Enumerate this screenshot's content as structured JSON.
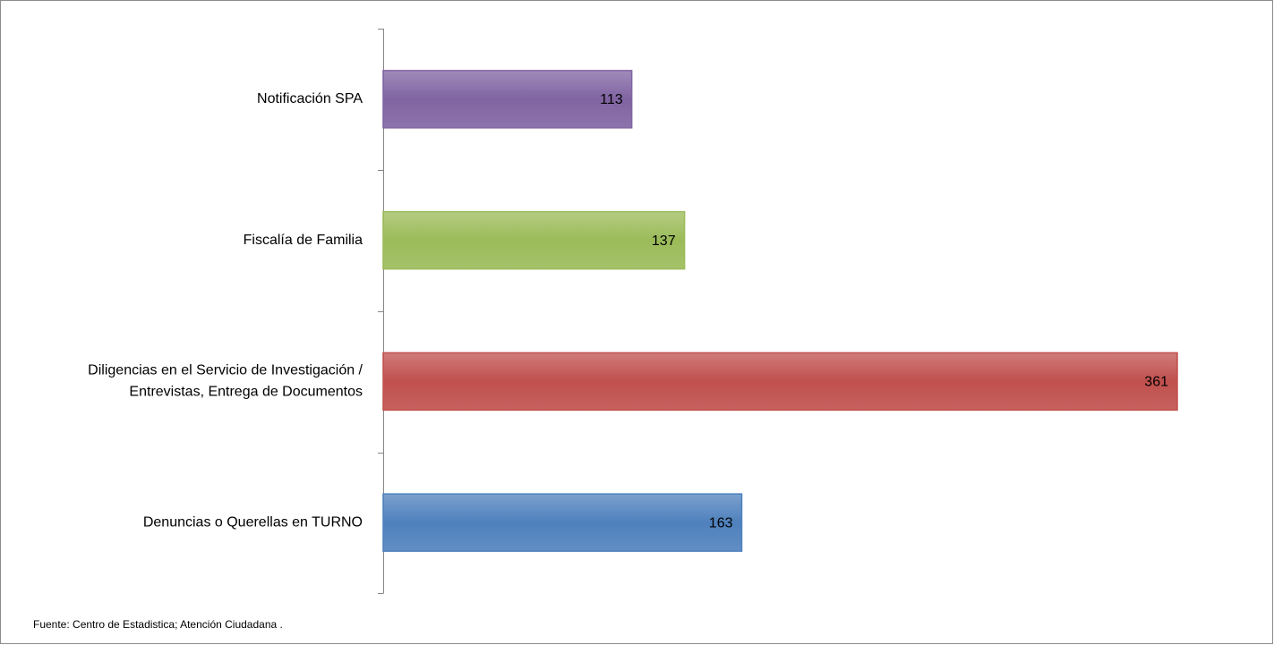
{
  "chart_data": {
    "type": "barh",
    "categories": [
      "Notificación SPA",
      "Fiscalía de Familia",
      "Diligencias en el Servicio de Investigación /\nEntrevistas, Entrega de Documentos",
      "Denuncias o Querellas en TURNO"
    ],
    "values": [
      113,
      137,
      361,
      163
    ],
    "colors": [
      "#8064a2",
      "#9bbb59",
      "#c0504d",
      "#4f81bd"
    ],
    "note": "Fuente: Centro de Estadistica; Atención Ciudadana ."
  }
}
